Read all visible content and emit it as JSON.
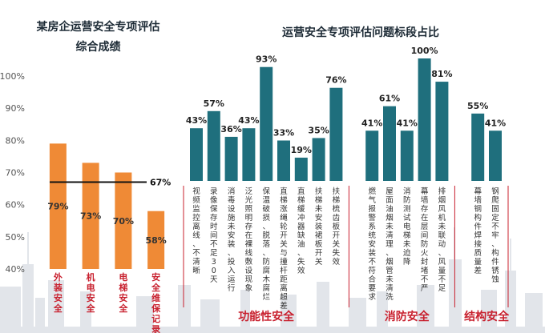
{
  "colors": {
    "orange": "#ef8a36",
    "teal": "#1f6f7d",
    "red": "#c8202e",
    "ref_line": "#111111",
    "skyline": "#e2e5ea",
    "axis_text": "#555555"
  },
  "chart_data": [
    {
      "type": "bar",
      "title": "某房企运营安全专项评估",
      "subtitle": "综合成绩",
      "categories": [
        "外装安全",
        "机电安全",
        "电梯安全",
        "安全维保记录"
      ],
      "values": [
        79,
        73,
        70,
        58
      ],
      "value_labels": [
        "79%",
        "73%",
        "70%",
        "58%"
      ],
      "ylim": [
        40,
        100
      ],
      "yticks": [
        40,
        50,
        60,
        70,
        80,
        90,
        100
      ],
      "ytick_labels": [
        "40%",
        "50%",
        "60%",
        "70%",
        "80%",
        "90%",
        "100%"
      ],
      "reference_line": {
        "value": 67,
        "label": "67%"
      },
      "grid": false,
      "color": "#ef8a36"
    },
    {
      "type": "bar",
      "title": "运营安全专项评估问题标段占比",
      "categories": [
        "视频监控离线、不清晰",
        "录像保存时间不足30天",
        "消毒设施未安装、投入运行",
        "泛光照明存在裸线敷设现象",
        "保温破损、脱落、防腐木腐烂",
        "直梯涨绳轮开关与撞杆距离超差",
        "直梯缓冲器缺油、失效",
        "扶梯未安装裙板开关",
        "扶梯梳齿板开关失效",
        "燃气报警系统安装不符合要求",
        "屋面油烟未清理、烟管未清洗",
        "消防测试电梯未迫降",
        "幕墙存在层间防火封堵不严",
        "排烟风机未联动、风量不足",
        "幕墙钢构件焊接质量差",
        "钢爬固定不牢、构件锈蚀"
      ],
      "values": [
        43,
        57,
        36,
        43,
        93,
        33,
        19,
        35,
        76,
        41,
        61,
        41,
        100,
        81,
        55,
        41
      ],
      "value_labels": [
        "43%",
        "57%",
        "36%",
        "43%",
        "93%",
        "33%",
        "19%",
        "35%",
        "76%",
        "41%",
        "61%",
        "41%",
        "100%",
        "81%",
        "55%",
        "41%"
      ],
      "groups": [
        {
          "name": "功能性安全",
          "count": 9
        },
        {
          "name": "消防安全",
          "count": 5
        },
        {
          "name": "结构安全",
          "count": 2
        }
      ],
      "ylim": [
        0,
        100
      ],
      "grid": false,
      "color": "#1f6f7d"
    }
  ]
}
